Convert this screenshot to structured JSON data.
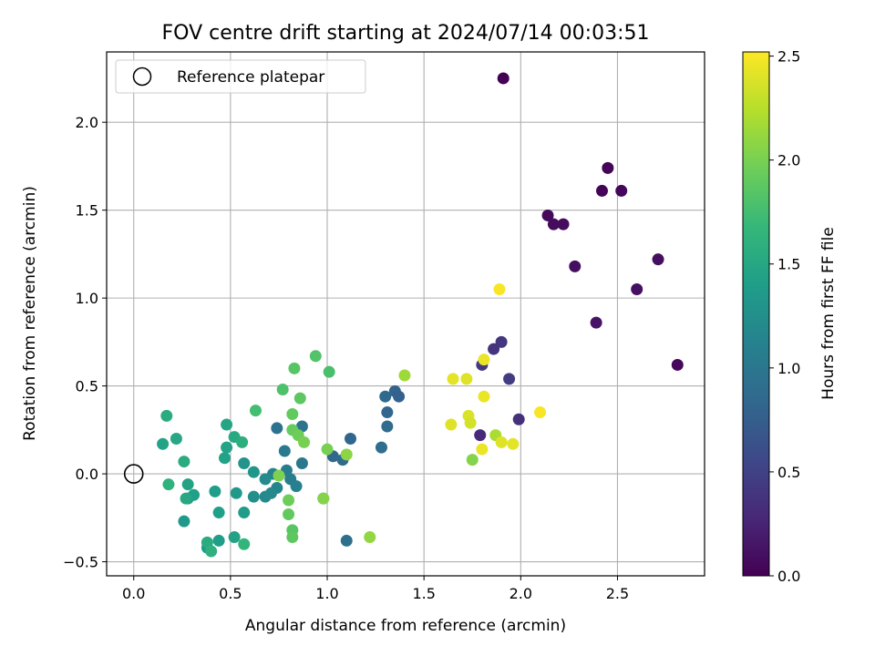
{
  "chart_data": {
    "type": "scatter",
    "title": "FOV centre drift starting at 2024/07/14 00:03:51",
    "xlabel": "Angular distance from reference (arcmin)",
    "ylabel": "Rotation from reference (arcmin)",
    "xlim": [
      -0.14,
      2.95
    ],
    "ylim": [
      -0.58,
      2.4
    ],
    "xticks": [
      0.0,
      0.5,
      1.0,
      1.5,
      2.0,
      2.5
    ],
    "xtick_labels": [
      "0.0",
      "0.5",
      "1.0",
      "1.5",
      "2.0",
      "2.5"
    ],
    "yticks": [
      -0.5,
      0.0,
      0.5,
      1.0,
      1.5,
      2.0
    ],
    "ytick_labels": [
      "−0.5",
      "0.0",
      "0.5",
      "1.0",
      "1.5",
      "2.0"
    ],
    "grid": true,
    "legend": {
      "placement": "upper-left",
      "entries": [
        {
          "label": "Reference platepar",
          "marker": "open-circle"
        }
      ]
    },
    "reference_point": {
      "x": 0.0,
      "y": 0.0,
      "label": "Reference platepar"
    },
    "colorbar": {
      "label": "Hours from first FF file",
      "colormap": "viridis",
      "range": [
        0.0,
        2.52
      ],
      "ticks": [
        0.0,
        0.5,
        1.0,
        1.5,
        2.0,
        2.5
      ],
      "tick_labels": [
        "0.0",
        "0.5",
        "1.0",
        "1.5",
        "2.0",
        "2.5"
      ],
      "colormap_stops": [
        "#440154",
        "#482878",
        "#3e4989",
        "#31688e",
        "#26828e",
        "#1f9e89",
        "#35b779",
        "#6ece58",
        "#b5de2b",
        "#fde725"
      ]
    },
    "points": [
      {
        "x": 1.91,
        "y": 2.25,
        "c": 0.0
      },
      {
        "x": 2.45,
        "y": 1.74,
        "c": 0.02
      },
      {
        "x": 2.42,
        "y": 1.61,
        "c": 0.03
      },
      {
        "x": 2.52,
        "y": 1.61,
        "c": 0.04
      },
      {
        "x": 2.14,
        "y": 1.47,
        "c": 0.06
      },
      {
        "x": 2.17,
        "y": 1.42,
        "c": 0.07
      },
      {
        "x": 2.22,
        "y": 1.42,
        "c": 0.08
      },
      {
        "x": 2.71,
        "y": 1.22,
        "c": 0.09
      },
      {
        "x": 2.28,
        "y": 1.18,
        "c": 0.1
      },
      {
        "x": 2.6,
        "y": 1.05,
        "c": 0.11
      },
      {
        "x": 2.39,
        "y": 0.86,
        "c": 0.13
      },
      {
        "x": 2.81,
        "y": 0.62,
        "c": 0.05
      },
      {
        "x": 1.9,
        "y": 0.75,
        "c": 0.4
      },
      {
        "x": 1.86,
        "y": 0.71,
        "c": 0.38
      },
      {
        "x": 1.8,
        "y": 0.62,
        "c": 0.42
      },
      {
        "x": 1.94,
        "y": 0.54,
        "c": 0.45
      },
      {
        "x": 1.99,
        "y": 0.31,
        "c": 0.35
      },
      {
        "x": 1.79,
        "y": 0.22,
        "c": 0.3
      },
      {
        "x": 1.35,
        "y": 0.47,
        "c": 0.8
      },
      {
        "x": 1.3,
        "y": 0.44,
        "c": 0.85
      },
      {
        "x": 1.37,
        "y": 0.44,
        "c": 0.78
      },
      {
        "x": 1.31,
        "y": 0.35,
        "c": 0.82
      },
      {
        "x": 1.31,
        "y": 0.27,
        "c": 0.88
      },
      {
        "x": 1.28,
        "y": 0.15,
        "c": 0.9
      },
      {
        "x": 1.12,
        "y": 0.2,
        "c": 0.83
      },
      {
        "x": 1.03,
        "y": 0.1,
        "c": 0.85
      },
      {
        "x": 1.08,
        "y": 0.08,
        "c": 0.87
      },
      {
        "x": 1.1,
        "y": -0.38,
        "c": 0.92
      },
      {
        "x": 0.74,
        "y": 0.26,
        "c": 0.95
      },
      {
        "x": 0.87,
        "y": 0.27,
        "c": 0.97
      },
      {
        "x": 0.87,
        "y": 0.06,
        "c": 1.0
      },
      {
        "x": 0.78,
        "y": 0.13,
        "c": 1.02
      },
      {
        "x": 0.79,
        "y": 0.02,
        "c": 1.05
      },
      {
        "x": 0.81,
        "y": -0.03,
        "c": 1.08
      },
      {
        "x": 0.84,
        "y": -0.07,
        "c": 1.1
      },
      {
        "x": 0.72,
        "y": 0.0,
        "c": 1.12
      },
      {
        "x": 0.74,
        "y": -0.08,
        "c": 1.15
      },
      {
        "x": 0.71,
        "y": -0.11,
        "c": 1.18
      },
      {
        "x": 0.68,
        "y": -0.13,
        "c": 1.2
      },
      {
        "x": 0.62,
        "y": -0.13,
        "c": 1.25
      },
      {
        "x": 0.68,
        "y": -0.03,
        "c": 1.22
      },
      {
        "x": 0.57,
        "y": 0.06,
        "c": 1.3
      },
      {
        "x": 0.62,
        "y": 0.01,
        "c": 1.32
      },
      {
        "x": 0.53,
        "y": -0.11,
        "c": 1.35
      },
      {
        "x": 0.57,
        "y": -0.22,
        "c": 1.38
      },
      {
        "x": 0.42,
        "y": -0.1,
        "c": 1.4
      },
      {
        "x": 0.44,
        "y": -0.22,
        "c": 1.42
      },
      {
        "x": 0.47,
        "y": 0.09,
        "c": 1.44
      },
      {
        "x": 0.48,
        "y": 0.15,
        "c": 1.46
      },
      {
        "x": 0.48,
        "y": 0.28,
        "c": 1.48
      },
      {
        "x": 0.52,
        "y": 0.21,
        "c": 1.52
      },
      {
        "x": 0.56,
        "y": 0.18,
        "c": 1.58
      },
      {
        "x": 0.52,
        "y": -0.36,
        "c": 1.45
      },
      {
        "x": 0.44,
        "y": -0.38,
        "c": 1.4
      },
      {
        "x": 0.38,
        "y": -0.42,
        "c": 1.38
      },
      {
        "x": 0.38,
        "y": -0.39,
        "c": 1.55
      },
      {
        "x": 0.4,
        "y": -0.44,
        "c": 1.6
      },
      {
        "x": 0.57,
        "y": -0.4,
        "c": 1.65
      },
      {
        "x": 0.26,
        "y": -0.27,
        "c": 1.35
      },
      {
        "x": 0.28,
        "y": -0.14,
        "c": 1.4
      },
      {
        "x": 0.28,
        "y": -0.06,
        "c": 1.45
      },
      {
        "x": 0.31,
        "y": -0.12,
        "c": 1.42
      },
      {
        "x": 0.27,
        "y": -0.14,
        "c": 1.5
      },
      {
        "x": 0.26,
        "y": 0.07,
        "c": 1.55
      },
      {
        "x": 0.22,
        "y": 0.2,
        "c": 1.5
      },
      {
        "x": 0.15,
        "y": 0.17,
        "c": 1.45
      },
      {
        "x": 0.17,
        "y": 0.33,
        "c": 1.55
      },
      {
        "x": 0.18,
        "y": -0.06,
        "c": 1.62
      },
      {
        "x": 0.63,
        "y": 0.36,
        "c": 1.75
      },
      {
        "x": 0.77,
        "y": 0.48,
        "c": 1.8
      },
      {
        "x": 0.83,
        "y": 0.6,
        "c": 1.85
      },
      {
        "x": 0.86,
        "y": 0.43,
        "c": 1.88
      },
      {
        "x": 0.94,
        "y": 0.67,
        "c": 1.82
      },
      {
        "x": 1.01,
        "y": 0.58,
        "c": 1.78
      },
      {
        "x": 0.82,
        "y": 0.34,
        "c": 1.9
      },
      {
        "x": 0.82,
        "y": 0.25,
        "c": 1.92
      },
      {
        "x": 0.85,
        "y": 0.22,
        "c": 1.95
      },
      {
        "x": 0.88,
        "y": 0.18,
        "c": 2.0
      },
      {
        "x": 0.75,
        "y": -0.01,
        "c": 2.02
      },
      {
        "x": 0.8,
        "y": -0.15,
        "c": 1.95
      },
      {
        "x": 0.8,
        "y": -0.23,
        "c": 1.9
      },
      {
        "x": 0.82,
        "y": -0.32,
        "c": 1.85
      },
      {
        "x": 0.82,
        "y": -0.36,
        "c": 1.88
      },
      {
        "x": 0.98,
        "y": -0.14,
        "c": 1.8
      },
      {
        "x": 0.98,
        "y": -0.14,
        "c": 2.05
      },
      {
        "x": 1.0,
        "y": 0.14,
        "c": 2.0
      },
      {
        "x": 1.1,
        "y": 0.11,
        "c": 2.08
      },
      {
        "x": 1.22,
        "y": -0.36,
        "c": 2.1
      },
      {
        "x": 1.4,
        "y": 0.56,
        "c": 2.15
      },
      {
        "x": 1.75,
        "y": 0.08,
        "c": 2.05
      },
      {
        "x": 1.87,
        "y": 0.22,
        "c": 2.2
      },
      {
        "x": 1.64,
        "y": 0.28,
        "c": 2.4
      },
      {
        "x": 1.73,
        "y": 0.33,
        "c": 2.38
      },
      {
        "x": 1.74,
        "y": 0.29,
        "c": 2.35
      },
      {
        "x": 1.65,
        "y": 0.54,
        "c": 2.42
      },
      {
        "x": 1.72,
        "y": 0.54,
        "c": 2.4
      },
      {
        "x": 1.81,
        "y": 0.44,
        "c": 2.45
      },
      {
        "x": 1.81,
        "y": 0.65,
        "c": 2.45
      },
      {
        "x": 1.8,
        "y": 0.14,
        "c": 2.45
      },
      {
        "x": 1.9,
        "y": 0.18,
        "c": 2.4
      },
      {
        "x": 1.96,
        "y": 0.17,
        "c": 2.42
      },
      {
        "x": 1.89,
        "y": 1.05,
        "c": 2.5
      },
      {
        "x": 2.1,
        "y": 0.35,
        "c": 2.5
      }
    ]
  }
}
